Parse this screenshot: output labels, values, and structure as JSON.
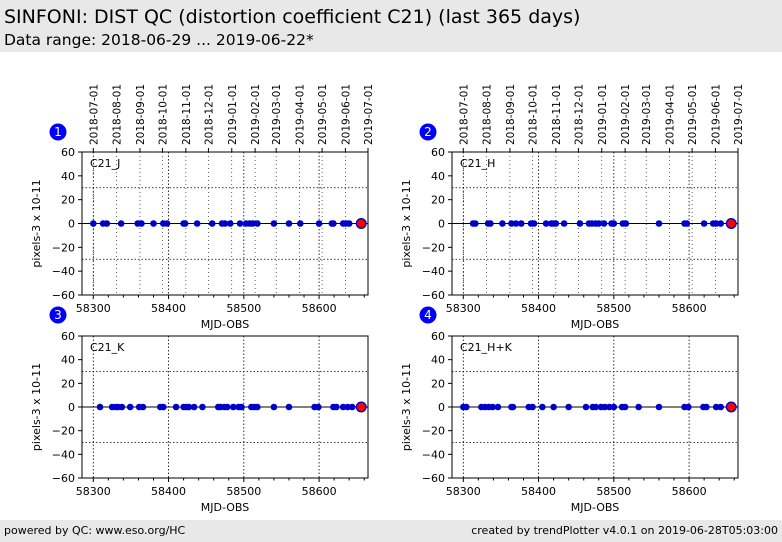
{
  "header": {
    "title": "SINFONI: DIST QC (distortion coefficient C21) (last 365 days)",
    "subtitle": "Data range: 2018-06-29 ... 2019-06-22*"
  },
  "footer": {
    "left": "powered by QC: www.eso.org/HC",
    "right": "created by trendPlotter v4.0.1 on 2019-06-28T05:03:00"
  },
  "colors": {
    "points": "#0000cc",
    "last_point_fill": "#ff0000",
    "marker_badge": "#0000ff"
  },
  "chart_data": [
    {
      "type": "scatter",
      "panel_number": "1",
      "label": "C21_J",
      "xlabel": "MJD-OBS",
      "ylabel": "pixels-3 x 10-11",
      "xlim": [
        58285,
        58665
      ],
      "ylim": [
        -60,
        60
      ],
      "x_ticks": [
        58300,
        58400,
        58500,
        58600
      ],
      "y_ticks": [
        60,
        40,
        20,
        0,
        -20,
        -40,
        -60
      ],
      "reference_lines": [
        30,
        -30
      ],
      "zero_line": 0,
      "date_ticks": [
        "2018-07-01",
        "2018-08-01",
        "2018-09-01",
        "2018-10-01",
        "2018-11-01",
        "2018-12-01",
        "2019-01-01",
        "2019-02-01",
        "2019-03-01",
        "2019-04-01",
        "2019-05-01",
        "2019-06-01",
        "2019-07-01"
      ],
      "date_tick_mjd": [
        58300,
        58331,
        58362,
        58392,
        58423,
        58453,
        58484,
        58515,
        58543,
        58574,
        58604,
        58635,
        58665
      ],
      "grid": true,
      "x": [
        58300,
        58313,
        58318,
        58337,
        58359,
        58364,
        58380,
        58393,
        58398,
        58420,
        58422,
        58438,
        58458,
        58471,
        58475,
        58482,
        58495,
        58503,
        58508,
        58512,
        58518,
        58540,
        58560,
        58575,
        58600,
        58617,
        58619,
        58632,
        58636,
        58640
      ],
      "y": [
        0,
        0,
        0,
        0,
        0,
        0,
        0,
        0,
        0,
        0,
        0,
        0,
        0,
        0,
        0,
        0,
        0,
        0,
        0,
        0,
        0,
        0,
        0,
        0,
        0,
        0,
        0,
        0,
        0,
        0
      ],
      "last_point": [
        58656,
        0
      ]
    },
    {
      "type": "scatter",
      "panel_number": "2",
      "label": "C21_H",
      "xlabel": "MJD-OBS",
      "ylabel": "pixels-3 x 10-11",
      "xlim": [
        58285,
        58665
      ],
      "ylim": [
        -60,
        60
      ],
      "x_ticks": [
        58300,
        58400,
        58500,
        58600
      ],
      "y_ticks": [
        60,
        40,
        20,
        0,
        -20,
        -40,
        -60
      ],
      "reference_lines": [
        30,
        -30
      ],
      "zero_line": 0,
      "date_ticks": [
        "2018-07-01",
        "2018-08-01",
        "2018-09-01",
        "2018-10-01",
        "2018-11-01",
        "2018-12-01",
        "2019-01-01",
        "2019-02-01",
        "2019-03-01",
        "2019-04-01",
        "2019-05-01",
        "2019-06-01",
        "2019-07-01"
      ],
      "date_tick_mjd": [
        58300,
        58331,
        58362,
        58392,
        58423,
        58453,
        58484,
        58515,
        58543,
        58574,
        58604,
        58635,
        58665
      ],
      "grid": true,
      "x": [
        58313,
        58316,
        58333,
        58336,
        58352,
        58364,
        58370,
        58377,
        58390,
        58394,
        58410,
        58417,
        58420,
        58423,
        58434,
        58455,
        58467,
        58471,
        58476,
        58480,
        58487,
        58497,
        58500,
        58512,
        58516,
        58560,
        58594,
        58597,
        58620,
        58632,
        58636,
        58642
      ],
      "y": [
        0,
        0,
        0,
        0,
        0,
        0,
        0,
        0,
        0,
        0,
        0,
        0,
        0,
        0,
        0,
        0,
        0,
        0,
        0,
        0,
        0,
        0,
        0,
        0,
        0,
        0,
        0,
        0,
        0,
        0,
        0,
        0
      ],
      "last_point": [
        58656,
        0
      ]
    },
    {
      "type": "scatter",
      "panel_number": "3",
      "label": "C21_K",
      "xlabel": "MJD-OBS",
      "ylabel": "pixels-3 x 10-11",
      "xlim": [
        58285,
        58665
      ],
      "ylim": [
        -60,
        60
      ],
      "x_ticks": [
        58300,
        58400,
        58500,
        58600
      ],
      "y_ticks": [
        60,
        40,
        20,
        0,
        -20,
        -40,
        -60
      ],
      "reference_lines": [
        30,
        -30
      ],
      "zero_line": 0,
      "date_ticks": [],
      "date_tick_mjd": [],
      "grid": true,
      "x": [
        58309,
        58325,
        58330,
        58333,
        58338,
        58349,
        58361,
        58366,
        58389,
        58393,
        58410,
        58420,
        58424,
        58427,
        58434,
        58445,
        58466,
        58469,
        58474,
        58478,
        58486,
        58493,
        58497,
        58510,
        58514,
        58518,
        58540,
        58560,
        58594,
        58599,
        58619,
        58623,
        58632,
        58638,
        58644
      ],
      "y": [
        0,
        0,
        0,
        0,
        0,
        0,
        0,
        0,
        0,
        0,
        0,
        0,
        0,
        0,
        0,
        0,
        0,
        0,
        0,
        0,
        0,
        0,
        0,
        0,
        0,
        0,
        0,
        0,
        0,
        0,
        0,
        0,
        0,
        0,
        0
      ],
      "last_point": [
        58656,
        0
      ]
    },
    {
      "type": "scatter",
      "panel_number": "4",
      "label": "C21_H+K",
      "xlabel": "MJD-OBS",
      "ylabel": "pixels-3 x 10-11",
      "xlim": [
        58285,
        58665
      ],
      "ylim": [
        -60,
        60
      ],
      "x_ticks": [
        58300,
        58400,
        58500,
        58600
      ],
      "y_ticks": [
        60,
        40,
        20,
        0,
        -20,
        -40,
        -60
      ],
      "reference_lines": [
        30,
        -30
      ],
      "zero_line": 0,
      "date_ticks": [],
      "date_tick_mjd": [],
      "grid": true,
      "x": [
        58300,
        58304,
        58324,
        58329,
        58334,
        58339,
        58346,
        58364,
        58366,
        58387,
        58392,
        58405,
        58420,
        58440,
        58463,
        58472,
        58476,
        58483,
        58488,
        58494,
        58500,
        58511,
        58515,
        58533,
        58560,
        58594,
        58599,
        58619,
        58623,
        58636,
        58642
      ],
      "y": [
        0,
        0,
        0,
        0,
        0,
        0,
        0,
        0,
        0,
        0,
        0,
        0,
        0,
        0,
        0,
        0,
        0,
        0,
        0,
        0,
        0,
        0,
        0,
        0,
        0,
        0,
        0,
        0,
        0,
        0,
        0
      ],
      "last_point": [
        58656,
        0
      ]
    }
  ]
}
